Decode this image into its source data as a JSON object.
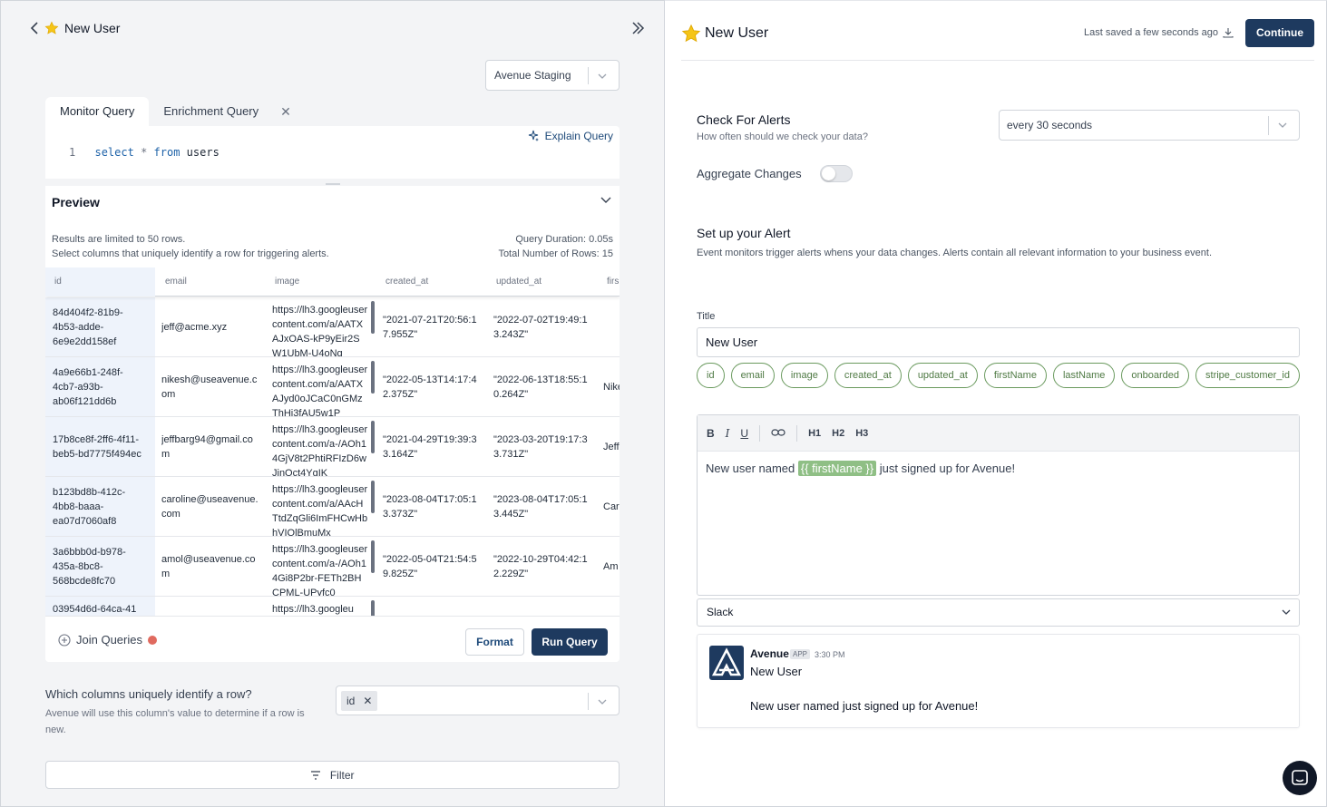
{
  "left_header": {
    "title": "New User"
  },
  "datasource": {
    "value": "Avenue Staging"
  },
  "tabs": [
    {
      "label": "Monitor Query"
    },
    {
      "label": "Enrichment Query"
    }
  ],
  "editor": {
    "explain_label": "Explain Query",
    "line_number": "1",
    "code": {
      "kw1": "select",
      "op": "*",
      "kw2": "from",
      "table": "users"
    }
  },
  "preview": {
    "title": "Preview",
    "limit_note": "Results are limited to 50 rows.",
    "select_note": "Select columns that uniquely identify a row for triggering alerts.",
    "duration": "Query Duration: 0.05s",
    "total_rows": "Total Number of Rows: 15",
    "columns": [
      "id",
      "email",
      "image",
      "created_at",
      "updated_at",
      "firs"
    ],
    "rows": [
      {
        "id": "84d404f2-81b9-4b53-adde-6e9e2dd158ef",
        "email": "jeff@acme.xyz",
        "image": "https://lh3.googleusercontent.com/a/AATXAJxOAS-kP9yEir2SW1UbM-U4oNq",
        "created_at": "\"2021-07-21T20:56:17.955Z\"",
        "updated_at": "\"2022-07-02T19:49:13.243Z\"",
        "first": ""
      },
      {
        "id": "4a9e66b1-248f-4cb7-a93b-ab06f121dd6b",
        "email": "nikesh@useavenue.com",
        "image": "https://lh3.googleusercontent.com/a/AATXAJyd0oJCaC0nGMzThHi3fAU5w1P",
        "created_at": "\"2022-05-13T14:17:42.375Z\"",
        "updated_at": "\"2022-06-13T18:55:10.264Z\"",
        "first": "Nike"
      },
      {
        "id": "17b8ce8f-2ff6-4f11-beb5-bd7775f494ec",
        "email": "jeffbarg94@gmail.com",
        "image": "https://lh3.googleusercontent.com/a-/AOh14GjV8t2PhtiRFIzD6wJinOct4YgIK",
        "created_at": "\"2021-04-29T19:39:33.164Z\"",
        "updated_at": "\"2023-03-20T19:17:33.731Z\"",
        "first": "Jeff"
      },
      {
        "id": "b123bd8b-412c-4bb8-baaa-ea07d7060af8",
        "email": "caroline@useavenue.com",
        "image": "https://lh3.googleusercontent.com/a/AAcHTtdZqGli6ImFHCwHbhVIQlBmuMx",
        "created_at": "\"2023-08-04T17:05:13.373Z\"",
        "updated_at": "\"2023-08-04T17:05:13.445Z\"",
        "first": "Car"
      },
      {
        "id": "3a6bbb0d-b978-435a-8bc8-568bcde8fc70",
        "email": "amol@useavenue.com",
        "image": "https://lh3.googleusercontent.com/a-/AOh14Gi8P2br-FETh2BHCPML-UPyfc0",
        "created_at": "\"2022-05-04T21:54:59.825Z\"",
        "updated_at": "\"2022-10-29T04:42:12.229Z\"",
        "first": "Am"
      },
      {
        "id": "03954d6d-64ca-41",
        "email": "",
        "image": "https://lh3.googleu",
        "created_at": "",
        "updated_at": "",
        "first": ""
      }
    ],
    "join_label": "Join Queries",
    "format_label": "Format",
    "run_label": "Run Query"
  },
  "unique": {
    "label": "Which columns uniquely identify a row?",
    "help": "Avenue will use this column's value to determine if a row is new.",
    "selected": "id"
  },
  "filter_label": "Filter",
  "right": {
    "title": "New User",
    "saved": "Last saved a few seconds ago",
    "continue_label": "Continue",
    "check_title": "Check For Alerts",
    "check_sub": "How often should we check your data?",
    "frequency": "every 30 seconds",
    "aggregate_label": "Aggregate Changes",
    "aggregate_on": false,
    "setup_title": "Set up your Alert",
    "setup_sub": "Event monitors trigger alerts whens your data changes. Alerts contain all relevant information to your business event.",
    "title_label": "Title",
    "title_value": "New User",
    "pills": [
      "id",
      "email",
      "image",
      "created_at",
      "updated_at",
      "firstName",
      "lastName",
      "onboarded",
      "stripe_customer_id"
    ],
    "toolbar": {
      "bold": "B",
      "italic": "I",
      "underline": "U",
      "h1": "H1",
      "h2": "H2",
      "h3": "H3"
    },
    "body_before": "New user named ",
    "body_var": "{{ firstName }}",
    "body_after": " just signed up for Avenue!",
    "channel": "Slack",
    "slack": {
      "name": "Avenue",
      "app_badge": "APP",
      "time": "3:30 PM",
      "title": "New User",
      "message": "New user named just signed up for Avenue!"
    }
  },
  "colors": {
    "primary": "#1e3a5f",
    "pill_green": "#6a9a5e",
    "status_dot": "#e06a5f"
  }
}
